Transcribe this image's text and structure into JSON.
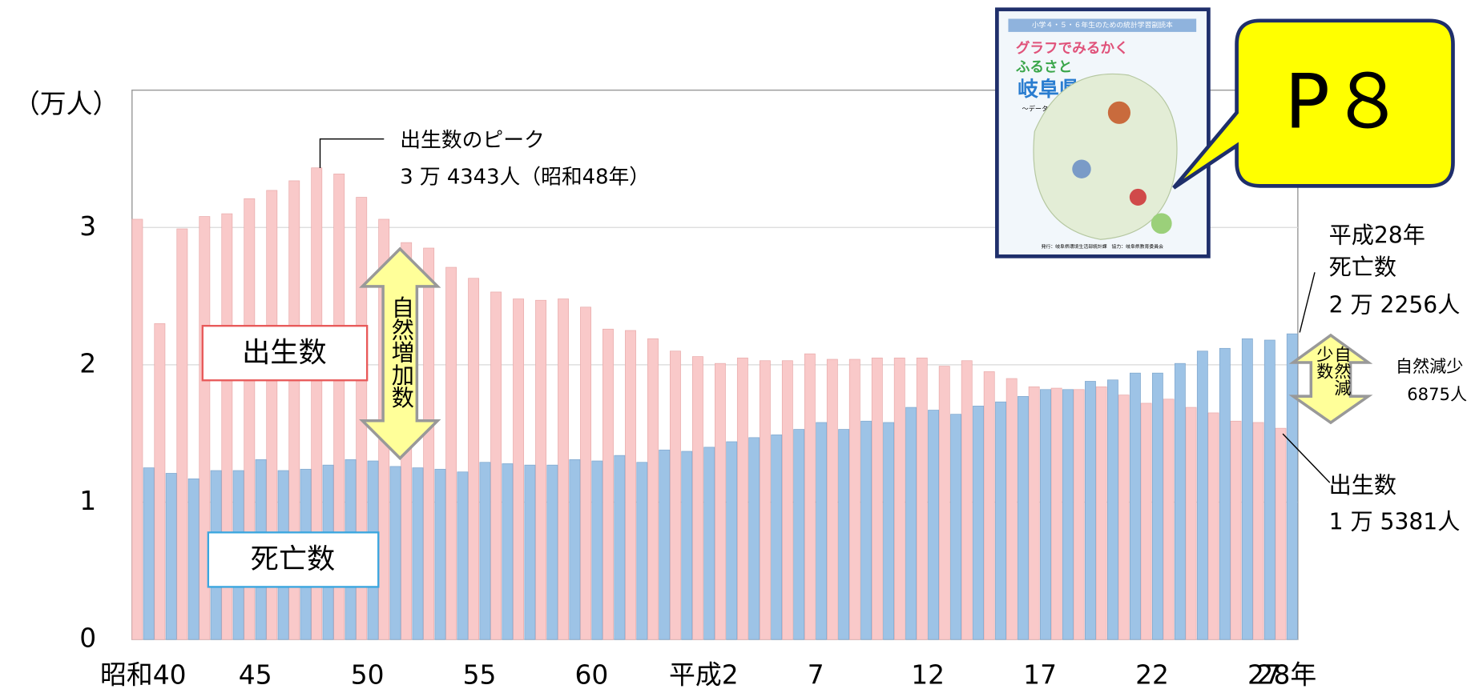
{
  "chart_data": {
    "type": "bar",
    "unit_label": "（万人）",
    "categories": [
      "昭和40",
      null,
      null,
      null,
      null,
      "45",
      null,
      null,
      null,
      null,
      "50",
      null,
      null,
      null,
      null,
      "55",
      null,
      null,
      null,
      null,
      "60",
      null,
      null,
      null,
      null,
      "平成2",
      null,
      null,
      null,
      null,
      "7",
      null,
      null,
      null,
      null,
      "12",
      null,
      null,
      null,
      null,
      "17",
      null,
      null,
      null,
      null,
      "22",
      null,
      null,
      null,
      null,
      "27",
      "28年"
    ],
    "series": [
      {
        "name": "出生数",
        "color": "#f9c9c9",
        "values": [
          3.06,
          2.3,
          2.99,
          3.08,
          3.1,
          3.21,
          3.27,
          3.34,
          3.4343,
          3.39,
          3.22,
          3.06,
          2.89,
          2.85,
          2.71,
          2.63,
          2.53,
          2.48,
          2.47,
          2.48,
          2.42,
          2.26,
          2.25,
          2.19,
          2.1,
          2.06,
          2.01,
          2.05,
          2.03,
          2.03,
          2.08,
          2.04,
          2.04,
          2.05,
          2.05,
          2.05,
          1.99,
          2.03,
          1.95,
          1.9,
          1.84,
          1.83,
          1.82,
          1.84,
          1.78,
          1.72,
          1.75,
          1.69,
          1.65,
          1.59,
          1.58,
          1.5381
        ]
      },
      {
        "name": "死亡数",
        "color": "#9dc3e6",
        "values": [
          1.25,
          1.21,
          1.17,
          1.23,
          1.23,
          1.31,
          1.23,
          1.24,
          1.27,
          1.31,
          1.3,
          1.26,
          1.25,
          1.24,
          1.22,
          1.29,
          1.28,
          1.27,
          1.27,
          1.31,
          1.3,
          1.34,
          1.29,
          1.38,
          1.37,
          1.4,
          1.44,
          1.47,
          1.49,
          1.53,
          1.58,
          1.53,
          1.59,
          1.58,
          1.69,
          1.67,
          1.64,
          1.7,
          1.73,
          1.77,
          1.82,
          1.82,
          1.88,
          1.89,
          1.94,
          1.94,
          2.01,
          2.1,
          2.12,
          2.19,
          2.18,
          2.2256
        ]
      }
    ],
    "ylim": [
      0,
      4
    ],
    "yticks": [
      0,
      1,
      2,
      3
    ],
    "grid": true,
    "annotations": {
      "peak_title": "出生数のピーク",
      "peak_value": "3 万 4343人（昭和48年）",
      "natural_increase": "自然増加数",
      "natural_decrease": "自然減少数",
      "decrease_title": "自然減少",
      "decrease_value": "6875人",
      "death_year": "平成28年",
      "death_title": "死亡数",
      "death_value": "2 万 2256人",
      "birth_title": "出生数",
      "birth_value": "1 万 5381人",
      "page_ref": "P８"
    }
  },
  "book_cover": {
    "series_title": "小学４・５・６年生のための統計学習副読本",
    "title_line1": "グラフでみるかく",
    "title_line2": "ふるさと",
    "title_line3": "岐阜県",
    "subtitle": "〜データ活用講座〜",
    "footer": "発行：岐阜県環境生活部統計課　協力：岐阜県教育委員会"
  }
}
